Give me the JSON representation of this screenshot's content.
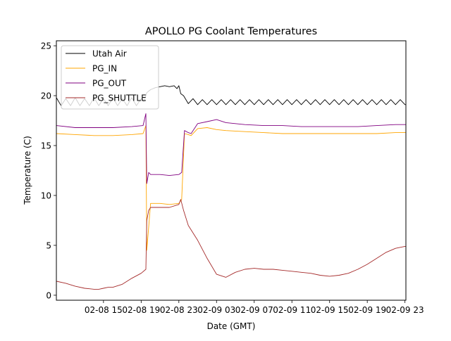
{
  "chart_data": {
    "type": "line",
    "title": "APOLLO PG Coolant Temperatures",
    "xlabel": "Date (GMT)",
    "ylabel": "Temperature (C)",
    "xlim_hours": [
      10,
      47.1
    ],
    "ylim": [
      -0.5,
      25.5
    ],
    "x_ticks": [
      {
        "hour": 15,
        "label": "02-08 15"
      },
      {
        "hour": 19,
        "label": "02-08 19"
      },
      {
        "hour": 23,
        "label": "02-08 23"
      },
      {
        "hour": 27,
        "label": "02-09 03"
      },
      {
        "hour": 31,
        "label": "02-09 07"
      },
      {
        "hour": 35,
        "label": "02-09 11"
      },
      {
        "hour": 39,
        "label": "02-09 15"
      },
      {
        "hour": 43,
        "label": "02-09 19"
      },
      {
        "hour": 47,
        "label": "02-09 23"
      }
    ],
    "y_ticks": [
      {
        "value": 0,
        "label": "0"
      },
      {
        "value": 5,
        "label": "5"
      },
      {
        "value": 10,
        "label": "10"
      },
      {
        "value": 15,
        "label": "15"
      },
      {
        "value": 20,
        "label": "20"
      },
      {
        "value": 25,
        "label": "25"
      }
    ],
    "legend_position": "top-left",
    "series": [
      {
        "name": "Utah Air",
        "color": "#000000",
        "x": [
          10.0,
          10.5,
          11.0,
          11.5,
          12.0,
          12.5,
          13.0,
          13.5,
          14.0,
          14.5,
          15.0,
          15.5,
          16.0,
          16.5,
          17.0,
          17.5,
          18.0,
          18.5,
          19.0,
          19.3,
          19.6,
          20.0,
          20.5,
          21.0,
          21.5,
          22.0,
          22.5,
          22.8,
          23.0,
          23.2,
          23.5,
          24.0,
          24.5,
          25.0,
          25.5,
          26.0,
          26.5,
          27.0,
          27.5,
          28.0,
          28.5,
          29.0,
          29.5,
          30.0,
          30.5,
          31.0,
          31.5,
          32.0,
          32.5,
          33.0,
          33.5,
          34.0,
          34.5,
          35.0,
          35.5,
          36.0,
          36.5,
          37.0,
          37.5,
          38.0,
          38.5,
          39.0,
          39.5,
          40.0,
          40.5,
          41.0,
          41.5,
          42.0,
          42.5,
          43.0,
          43.5,
          44.0,
          44.5,
          45.0,
          45.5,
          46.0,
          46.5,
          47.0,
          47.1
        ],
        "y": [
          19.8,
          19.0,
          19.7,
          19.0,
          19.8,
          19.0,
          19.7,
          19.0,
          19.8,
          19.0,
          19.7,
          19.0,
          19.8,
          19.0,
          19.7,
          19.0,
          19.8,
          19.0,
          19.7,
          19.4,
          20.3,
          20.6,
          20.8,
          20.9,
          21.0,
          20.9,
          21.0,
          20.7,
          21.0,
          20.2,
          20.0,
          19.2,
          19.7,
          19.1,
          19.6,
          19.1,
          19.6,
          19.1,
          19.6,
          19.1,
          19.6,
          19.1,
          19.6,
          19.1,
          19.6,
          19.1,
          19.6,
          19.1,
          19.6,
          19.1,
          19.6,
          19.1,
          19.6,
          19.1,
          19.6,
          19.1,
          19.6,
          19.1,
          19.6,
          19.1,
          19.6,
          19.1,
          19.6,
          19.1,
          19.6,
          19.1,
          19.6,
          19.1,
          19.6,
          19.1,
          19.6,
          19.1,
          19.6,
          19.1,
          19.6,
          19.1,
          19.6,
          19.1,
          19.1
        ]
      },
      {
        "name": "PG_IN",
        "color": "#ffa500",
        "x": [
          10.0,
          12.0,
          14.0,
          16.0,
          18.0,
          19.2,
          19.5,
          19.6,
          20.0,
          21.0,
          22.0,
          23.0,
          23.3,
          23.6,
          24.0,
          24.3,
          25.0,
          26.0,
          27.0,
          28.0,
          30.0,
          32.0,
          34.0,
          36.0,
          38.0,
          40.0,
          42.0,
          44.0,
          46.0,
          47.1
        ],
        "y": [
          16.2,
          16.1,
          16.0,
          16.0,
          16.1,
          16.2,
          17.0,
          4.5,
          9.2,
          9.2,
          9.1,
          9.2,
          9.6,
          16.2,
          16.1,
          16.0,
          16.7,
          16.8,
          16.6,
          16.5,
          16.4,
          16.3,
          16.2,
          16.2,
          16.2,
          16.2,
          16.2,
          16.2,
          16.3,
          16.3
        ]
      },
      {
        "name": "PG_OUT",
        "color": "#800080",
        "x": [
          10.0,
          12.0,
          14.0,
          16.0,
          18.0,
          19.2,
          19.5,
          19.6,
          19.8,
          20.0,
          21.0,
          22.0,
          23.0,
          23.3,
          23.6,
          24.0,
          24.3,
          25.0,
          26.0,
          27.0,
          28.0,
          30.0,
          32.0,
          34.0,
          36.0,
          38.0,
          40.0,
          42.0,
          44.0,
          46.0,
          47.1
        ],
        "y": [
          17.0,
          16.8,
          16.8,
          16.8,
          16.9,
          17.0,
          18.2,
          11.2,
          12.3,
          12.1,
          12.1,
          12.0,
          12.1,
          12.3,
          16.5,
          16.3,
          16.2,
          17.2,
          17.4,
          17.6,
          17.3,
          17.1,
          17.0,
          17.0,
          16.9,
          16.9,
          16.9,
          16.9,
          17.0,
          17.1,
          17.1
        ]
      },
      {
        "name": "PG_SHUTTLE",
        "color": "#a52a2a",
        "x": [
          10.0,
          11.0,
          12.0,
          13.0,
          14.0,
          14.5,
          15.0,
          15.5,
          16.0,
          17.0,
          18.0,
          19.0,
          19.5,
          19.6,
          19.8,
          20.0,
          21.0,
          22.0,
          23.0,
          23.2,
          23.5,
          24.0,
          25.0,
          26.0,
          27.0,
          28.0,
          29.0,
          30.0,
          31.0,
          32.0,
          33.0,
          34.0,
          35.0,
          36.0,
          37.0,
          38.0,
          39.0,
          40.0,
          41.0,
          42.0,
          43.0,
          44.0,
          45.0,
          46.0,
          47.0,
          47.1
        ],
        "y": [
          1.4,
          1.2,
          0.9,
          0.7,
          0.6,
          0.6,
          0.7,
          0.8,
          0.8,
          1.1,
          1.7,
          2.2,
          2.6,
          7.5,
          8.5,
          8.8,
          8.8,
          8.8,
          9.1,
          9.6,
          8.5,
          7.0,
          5.5,
          3.7,
          2.1,
          1.8,
          2.3,
          2.6,
          2.7,
          2.6,
          2.6,
          2.5,
          2.4,
          2.3,
          2.2,
          2.0,
          1.9,
          2.0,
          2.2,
          2.6,
          3.1,
          3.7,
          4.3,
          4.7,
          4.9,
          4.9
        ]
      }
    ]
  }
}
